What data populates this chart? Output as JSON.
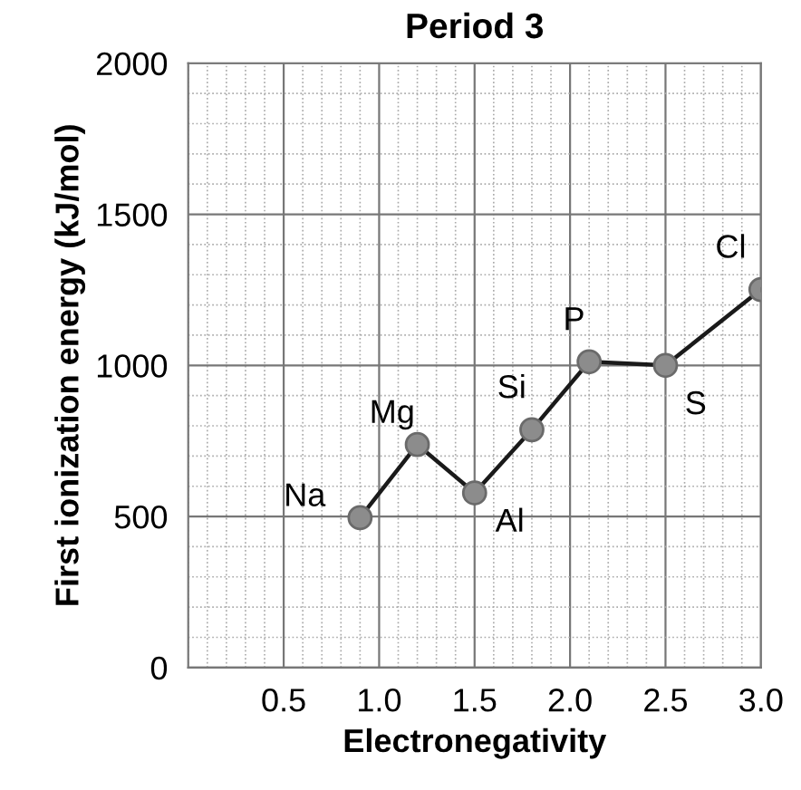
{
  "chart_data": {
    "type": "line",
    "title": "Period 3",
    "xlabel": "Electronegativity",
    "ylabel": "First ionization energy (kJ/mol)",
    "x": [
      0.9,
      1.2,
      1.5,
      1.8,
      2.1,
      2.5,
      3.0
    ],
    "series": [
      {
        "color": "#1a1a1a",
        "values": [
          496,
          738,
          578,
          787,
          1012,
          1000,
          1251
        ]
      }
    ],
    "marker": "circle",
    "line_style": "solid",
    "grid": true,
    "xlim": [
      0,
      3.0
    ],
    "ylim": [
      0,
      2000
    ],
    "xticks": [
      0.5,
      {
        "value": 1.0,
        "label": "1.0"
      },
      1.5,
      {
        "value": 2.0,
        "label": "2.0"
      },
      2.5,
      {
        "value": 3.0,
        "label": "3.0"
      }
    ],
    "yticks": [
      0,
      500,
      1000,
      1500,
      2000
    ],
    "annotations": [
      {
        "text": "Na",
        "x": 0.9,
        "y": 496
      },
      {
        "text": "Mg",
        "x": 1.2,
        "y": 738
      },
      {
        "text": "Al",
        "x": 1.5,
        "y": 578
      },
      {
        "text": "Si",
        "x": 1.8,
        "y": 787
      },
      {
        "text": "P",
        "x": 2.1,
        "y": 1012
      },
      {
        "text": "S",
        "x": 2.5,
        "y": 1000
      },
      {
        "text": "Cl",
        "x": 3.0,
        "y": 1251
      }
    ]
  }
}
